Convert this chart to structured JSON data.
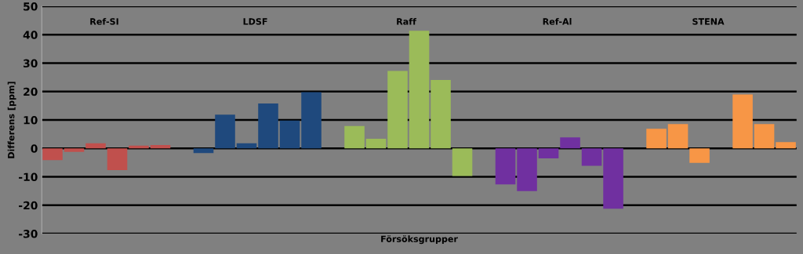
{
  "chart_data": {
    "type": "bar",
    "xlabel": "Försöksgrupper",
    "ylabel": "Differens [ppm]",
    "annotations": [
      "Ref-SI",
      "LDSF",
      "Raff",
      "Ref-Al",
      "STENA"
    ],
    "categories": [
      null,
      null,
      null,
      null,
      null,
      null,
      null,
      null,
      null,
      null,
      null,
      null,
      null,
      null,
      null,
      null,
      null,
      null,
      null,
      null,
      null,
      null,
      null,
      null,
      null,
      null,
      null,
      null,
      null,
      null,
      null,
      null,
      null,
      null,
      null
    ],
    "values": [
      -4.1,
      -1.2,
      1.8,
      -7.6,
      1.0,
      1.2,
      null,
      -1.6,
      11.9,
      1.8,
      15.8,
      9.8,
      19.8,
      null,
      7.9,
      3.4,
      27.3,
      41.4,
      24.1,
      -9.7,
      null,
      -12.7,
      -15.0,
      -3.5,
      3.9,
      -6.1,
      -21.2,
      null,
      6.9,
      8.6,
      -5.1,
      null,
      19.0,
      8.6,
      2.2
    ],
    "colors": [
      "#c0504d",
      "#c0504d",
      "#c0504d",
      "#c0504d",
      "#c0504d",
      "#c0504d",
      "#c0504d",
      "#1f497d",
      "#1f497d",
      "#1f497d",
      "#1f497d",
      "#1f497d",
      "#1f497d",
      "#1f497d",
      "#9bbb59",
      "#9bbb59",
      "#9bbb59",
      "#9bbb59",
      "#9bbb59",
      "#9bbb59",
      "#9bbb59",
      "#7030a0",
      "#7030a0",
      "#7030a0",
      "#7030a0",
      "#7030a0",
      "#7030a0",
      "#7030a0",
      "#f79646",
      "#f79646",
      "#f79646",
      "#f79646",
      "#f79646",
      "#f79646",
      "#f79646"
    ],
    "ylim": [
      -30,
      50
    ],
    "yticks": [
      -30,
      -20,
      -10,
      0,
      10,
      20,
      30,
      40,
      50
    ],
    "grid": "y",
    "legend": false
  }
}
